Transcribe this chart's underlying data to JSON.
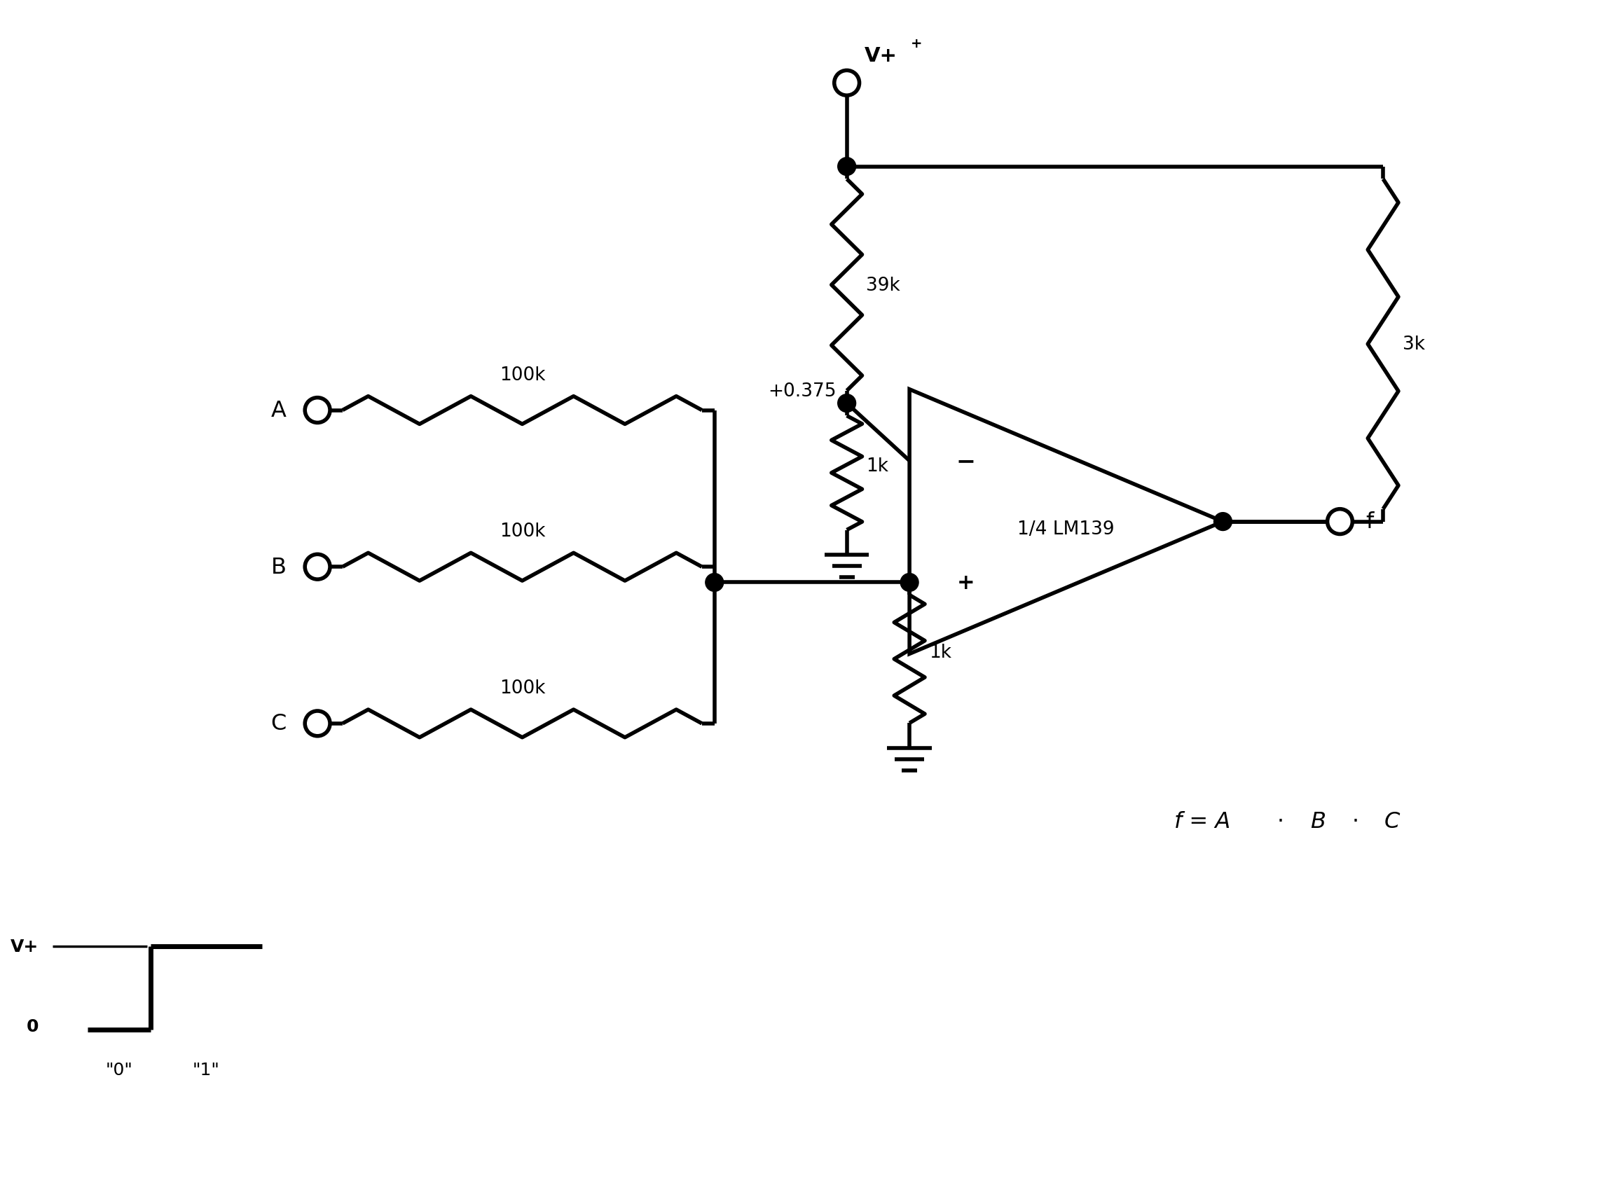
{
  "bg_color": "#ffffff",
  "line_color": "#000000",
  "lw": 4.0,
  "lw_thick": 5.0,
  "fig_width": 22.98,
  "fig_height": 16.9,
  "resistor_39k_label": "39k",
  "resistor_1k_top_label": "1k",
  "resistor_1k_bot_label": "1k",
  "resistor_3k_label": "3k",
  "resistor_100k_A_label": "100k",
  "resistor_100k_B_label": "100k",
  "resistor_100k_C_label": "100k",
  "node_label_375": "+0.375",
  "opamp_label": "1/4 LM139",
  "output_label": "f",
  "vplus_label": "V+",
  "input_A_label": "A",
  "input_B_label": "B",
  "input_C_label": "C",
  "formula": "f = A",
  "formula_dot1": "·",
  "formula_B": "B",
  "formula_dot2": "·",
  "formula_C": "C",
  "waveform_vplus": "V+",
  "waveform_0": "0",
  "waveform_label0": "\"0\"",
  "waveform_label1": "\"1\"",
  "minus_sign": "−",
  "plus_sign": "+"
}
